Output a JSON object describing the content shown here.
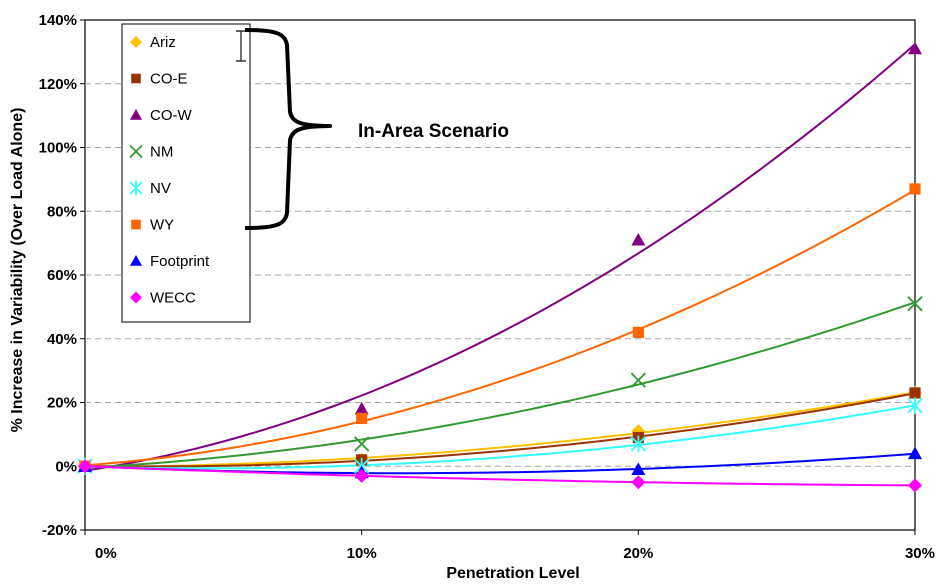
{
  "chart_data": {
    "type": "scatter",
    "title": "",
    "xlabel": "Penetration Level",
    "ylabel": "% Increase in Variability (Over Load Alone)",
    "x": [
      0,
      10,
      20,
      30
    ],
    "x_tick_labels": [
      "0%",
      "10%",
      "20%",
      "30%"
    ],
    "xlim": [
      0,
      30
    ],
    "ylim": [
      -20,
      140
    ],
    "y_ticks": [
      -20,
      0,
      20,
      40,
      60,
      80,
      100,
      120,
      140
    ],
    "y_tick_labels": [
      "-20%",
      "0%",
      "20%",
      "40%",
      "60%",
      "80%",
      "100%",
      "120%",
      "140%"
    ],
    "grid": "horizontal dashed",
    "legend_position": "top-left",
    "trendlines": true,
    "series": [
      {
        "name": "Ariz",
        "marker": "diamond",
        "color": "#FFC000",
        "values": [
          0,
          2,
          11,
          23
        ]
      },
      {
        "name": "CO-E",
        "marker": "square",
        "color": "#993300",
        "values": [
          0,
          2,
          9,
          23
        ]
      },
      {
        "name": "CO-W",
        "marker": "triangle",
        "color": "#800080",
        "values": [
          0,
          18,
          71,
          131
        ]
      },
      {
        "name": "NM",
        "marker": "x",
        "color": "#339933",
        "values": [
          0,
          7,
          27,
          51
        ]
      },
      {
        "name": "NV",
        "marker": "star",
        "color": "#33FFFF",
        "values": [
          0,
          0,
          7,
          19
        ]
      },
      {
        "name": "WY",
        "marker": "square",
        "color": "#FF6600",
        "values": [
          0,
          15,
          42,
          87
        ]
      },
      {
        "name": "Footprint",
        "marker": "triangle",
        "color": "#0000FF",
        "values": [
          0,
          -2,
          -1,
          4
        ]
      },
      {
        "name": "WECC",
        "marker": "diamond",
        "color": "#FF00FF",
        "values": [
          0,
          -3,
          -5,
          -6
        ]
      }
    ],
    "annotation": "In-Area Scenario"
  }
}
